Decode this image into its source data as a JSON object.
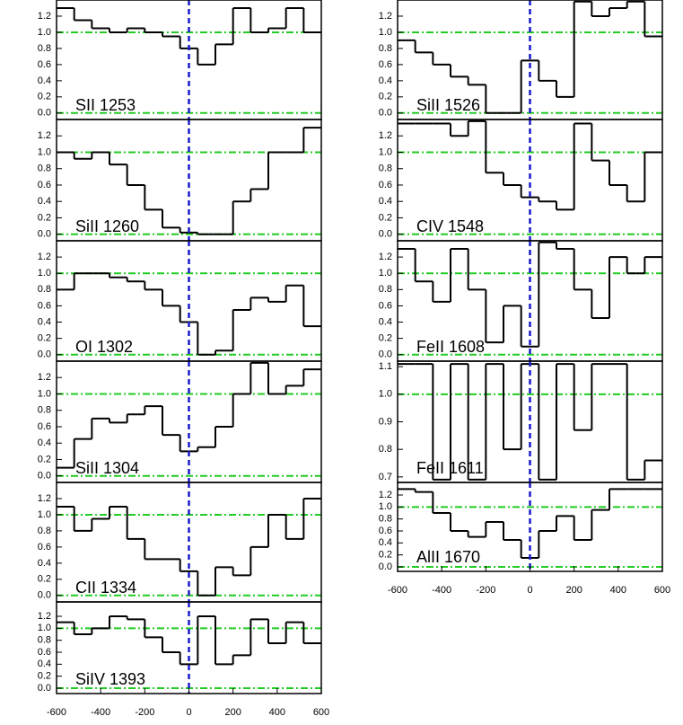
{
  "chart_data": [
    {
      "type": "line",
      "title": "SII 1253",
      "x": [
        -600,
        -520,
        -440,
        -360,
        -280,
        -200,
        -120,
        -40,
        40,
        120,
        200,
        280,
        360,
        440,
        520
      ],
      "values": [
        1.3,
        1.15,
        1.05,
        1.0,
        1.05,
        1.0,
        0.95,
        0.8,
        0.6,
        0.85,
        1.3,
        1.0,
        1.05,
        1.3,
        1.0
      ],
      "xlim": [
        -600,
        600
      ],
      "ylim": [
        -0.08,
        1.4
      ],
      "yticks": [
        {
          "value": 0,
          "label": "0.0"
        },
        0.2,
        0.4,
        0.6,
        0.8,
        {
          "value": 1,
          "label": "1.0"
        },
        1.2
      ],
      "hlines": [
        0,
        1
      ],
      "vline": 0,
      "color": "#000000",
      "ref_color": "#22cc22",
      "vline_color": "#1a1acc"
    },
    {
      "type": "line",
      "title": "SiII 1260",
      "x": [
        -600,
        -520,
        -440,
        -360,
        -280,
        -200,
        -120,
        -40,
        40,
        120,
        200,
        280,
        360,
        440,
        520
      ],
      "values": [
        1.0,
        0.92,
        1.0,
        0.85,
        0.6,
        0.3,
        0.08,
        0.02,
        0.0,
        0.0,
        0.4,
        0.55,
        1.0,
        1.0,
        1.3
      ],
      "xlim": [
        -600,
        600
      ],
      "ylim": [
        -0.08,
        1.4
      ],
      "yticks": [
        {
          "value": 0,
          "label": "0.0"
        },
        0.2,
        0.4,
        0.6,
        0.8,
        {
          "value": 1,
          "label": "1.0"
        },
        1.2
      ],
      "hlines": [
        0,
        1
      ],
      "vline": 0,
      "color": "#000000",
      "ref_color": "#22cc22",
      "vline_color": "#1a1acc"
    },
    {
      "type": "line",
      "title": "OI 1302",
      "x": [
        -600,
        -520,
        -440,
        -360,
        -280,
        -200,
        -120,
        -40,
        40,
        120,
        200,
        280,
        360,
        440,
        520
      ],
      "values": [
        0.8,
        1.0,
        1.0,
        0.95,
        0.9,
        0.8,
        0.6,
        0.4,
        0.0,
        0.05,
        0.55,
        0.7,
        0.65,
        0.85,
        0.35
      ],
      "xlim": [
        -600,
        600
      ],
      "ylim": [
        -0.08,
        1.4
      ],
      "yticks": [
        {
          "value": 0,
          "label": "0.0"
        },
        0.2,
        0.4,
        0.6,
        0.8,
        {
          "value": 1,
          "label": "1.0"
        },
        1.2
      ],
      "hlines": [
        0,
        1
      ],
      "vline": 0,
      "color": "#000000",
      "ref_color": "#22cc22",
      "vline_color": "#1a1acc"
    },
    {
      "type": "line",
      "title": "SiII 1304",
      "x": [
        -600,
        -520,
        -440,
        -360,
        -280,
        -200,
        -120,
        -40,
        40,
        120,
        200,
        280,
        360,
        440,
        520
      ],
      "values": [
        0.1,
        0.45,
        0.7,
        0.65,
        0.75,
        0.85,
        0.5,
        0.3,
        0.35,
        0.6,
        1.0,
        1.38,
        1.0,
        1.1,
        1.3
      ],
      "xlim": [
        -600,
        600
      ],
      "ylim": [
        -0.08,
        1.4
      ],
      "yticks": [
        {
          "value": 0,
          "label": "0.0"
        },
        0.2,
        0.4,
        0.6,
        0.8,
        {
          "value": 1,
          "label": "1.0"
        },
        1.2
      ],
      "hlines": [
        0,
        1
      ],
      "vline": 0,
      "color": "#000000",
      "ref_color": "#22cc22",
      "vline_color": "#1a1acc"
    },
    {
      "type": "line",
      "title": "CII 1334",
      "x": [
        -600,
        -520,
        -440,
        -360,
        -280,
        -200,
        -120,
        -40,
        40,
        120,
        200,
        280,
        360,
        440,
        520
      ],
      "values": [
        1.1,
        0.8,
        0.95,
        1.1,
        0.7,
        0.45,
        0.45,
        0.3,
        0.0,
        0.35,
        0.25,
        0.6,
        1.0,
        0.7,
        1.2
      ],
      "xlim": [
        -600,
        600
      ],
      "ylim": [
        -0.08,
        1.4
      ],
      "yticks": [
        {
          "value": 0,
          "label": "0.0"
        },
        0.2,
        0.4,
        0.6,
        0.8,
        {
          "value": 1,
          "label": "1.0"
        },
        1.2
      ],
      "hlines": [
        0,
        1
      ],
      "vline": 0,
      "color": "#000000",
      "ref_color": "#22cc22",
      "vline_color": "#1a1acc"
    },
    {
      "type": "line",
      "title": "SiIV 1393",
      "x": [
        -600,
        -520,
        -440,
        -360,
        -280,
        -200,
        -120,
        -40,
        40,
        120,
        200,
        280,
        360,
        440,
        520
      ],
      "values": [
        1.1,
        0.9,
        1.0,
        1.2,
        1.15,
        0.85,
        0.6,
        0.4,
        1.2,
        0.4,
        0.55,
        1.15,
        0.75,
        1.1,
        0.75
      ],
      "xlim": [
        -600,
        600
      ],
      "ylim": [
        -0.09,
        1.44
      ],
      "yticks": [
        {
          "value": 0,
          "label": "0.0"
        },
        0.2,
        0.4,
        0.6,
        0.8,
        {
          "value": 1,
          "label": "1.0"
        },
        1.2
      ],
      "xticks": [
        -600,
        -400,
        -200,
        0,
        200,
        400,
        600
      ],
      "hlines": [
        0,
        1
      ],
      "vline": 0,
      "color": "#000000",
      "ref_color": "#22cc22",
      "vline_color": "#1a1acc"
    },
    {
      "type": "line",
      "title": "SiII 1526",
      "x": [
        -600,
        -520,
        -440,
        -360,
        -280,
        -200,
        -120,
        -40,
        40,
        120,
        200,
        280,
        360,
        440,
        520
      ],
      "values": [
        0.9,
        0.75,
        0.6,
        0.45,
        0.35,
        0.0,
        0.0,
        0.65,
        0.4,
        0.2,
        1.38,
        1.2,
        1.3,
        1.38,
        0.95
      ],
      "xlim": [
        -600,
        600
      ],
      "ylim": [
        -0.08,
        1.4
      ],
      "yticks": [
        {
          "value": 0,
          "label": "0.0"
        },
        0.2,
        0.4,
        0.6,
        0.8,
        {
          "value": 1,
          "label": "1.0"
        },
        1.2
      ],
      "hlines": [
        0,
        1
      ],
      "vline": 0,
      "color": "#000000",
      "ref_color": "#22cc22",
      "vline_color": "#1a1acc"
    },
    {
      "type": "line",
      "title": "CIV 1548",
      "x": [
        -600,
        -520,
        -440,
        -360,
        -280,
        -200,
        -120,
        -40,
        40,
        120,
        200,
        280,
        360,
        440,
        520
      ],
      "values": [
        1.35,
        1.35,
        1.35,
        1.2,
        1.38,
        0.75,
        0.6,
        0.45,
        0.4,
        0.3,
        1.35,
        0.9,
        0.6,
        0.4,
        1.0
      ],
      "xlim": [
        -600,
        600
      ],
      "ylim": [
        -0.08,
        1.4
      ],
      "yticks": [
        {
          "value": 0,
          "label": "0.0"
        },
        0.2,
        0.4,
        0.6,
        0.8,
        {
          "value": 1,
          "label": "1.0"
        },
        1.2
      ],
      "hlines": [
        0,
        1
      ],
      "vline": 0,
      "color": "#000000",
      "ref_color": "#22cc22",
      "vline_color": "#1a1acc"
    },
    {
      "type": "line",
      "title": "FeII 1608",
      "x": [
        -600,
        -520,
        -440,
        -360,
        -280,
        -200,
        -120,
        -40,
        40,
        120,
        200,
        280,
        360,
        440,
        520
      ],
      "values": [
        1.3,
        0.9,
        0.65,
        1.3,
        0.8,
        0.15,
        0.6,
        0.1,
        1.38,
        1.3,
        0.8,
        0.45,
        1.2,
        1.0,
        1.2
      ],
      "xlim": [
        -600,
        600
      ],
      "ylim": [
        -0.08,
        1.4
      ],
      "yticks": [
        {
          "value": 0,
          "label": "0.0"
        },
        0.2,
        0.4,
        0.6,
        0.8,
        {
          "value": 1,
          "label": "1.0"
        },
        1.2
      ],
      "hlines": [
        0,
        1
      ],
      "vline": 0,
      "color": "#000000",
      "ref_color": "#22cc22",
      "vline_color": "#1a1acc"
    },
    {
      "type": "line",
      "title": "FeII 1611",
      "x": [
        -600,
        -520,
        -440,
        -360,
        -280,
        -200,
        -120,
        -40,
        40,
        120,
        200,
        280,
        360,
        440,
        520
      ],
      "values": [
        1.11,
        1.11,
        0.69,
        1.11,
        0.69,
        1.11,
        0.8,
        1.11,
        0.69,
        1.11,
        0.87,
        1.11,
        1.11,
        0.69,
        0.76
      ],
      "xlim": [
        -600,
        600
      ],
      "ylim": [
        0.68,
        1.12
      ],
      "yticks": [
        0.7,
        0.8,
        0.9,
        {
          "value": 1,
          "label": "1.0"
        },
        1.1
      ],
      "hlines": [
        1
      ],
      "vline": 0,
      "color": "#000000",
      "ref_color": "#22cc22",
      "vline_color": "#1a1acc"
    },
    {
      "type": "line",
      "title": "AlII 1670",
      "x": [
        -600,
        -520,
        -440,
        -360,
        -280,
        -200,
        -120,
        -40,
        40,
        120,
        200,
        280,
        360,
        440,
        520
      ],
      "values": [
        1.3,
        1.25,
        0.9,
        0.6,
        0.5,
        0.75,
        0.45,
        0.15,
        0.6,
        0.85,
        0.45,
        0.95,
        1.3,
        1.3,
        1.3
      ],
      "xlim": [
        -600,
        600
      ],
      "ylim": [
        -0.075,
        1.41
      ],
      "yticks": [
        {
          "value": 0,
          "label": "0.0"
        },
        0.2,
        0.4,
        0.6,
        0.8,
        {
          "value": 1,
          "label": "1.0"
        },
        1.2
      ],
      "xticks": [
        -600,
        -400,
        -200,
        0,
        200,
        400,
        600
      ],
      "hlines": [
        0,
        1
      ],
      "vline": 0,
      "color": "#000000",
      "ref_color": "#22cc22",
      "vline_color": "#1a1acc"
    }
  ]
}
